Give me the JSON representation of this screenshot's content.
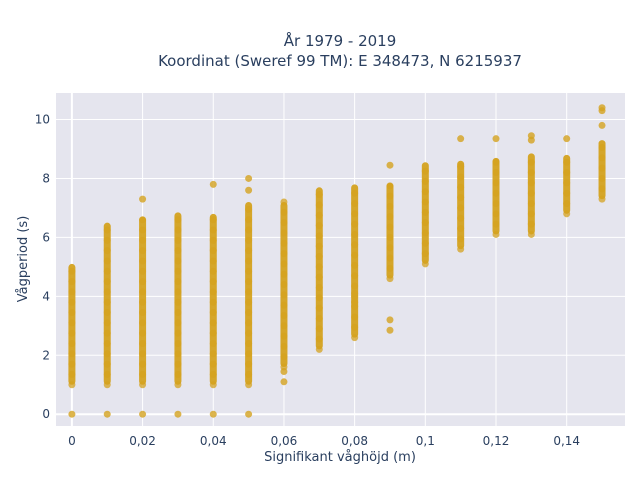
{
  "chart_data": {
    "type": "scatter",
    "title": "År 1979 - 2019",
    "subtitle": "Koordinat (Sweref 99 TM): E 348473, N 6215937",
    "xlabel": "Signifikant våghöjd (m)",
    "ylabel": "Vågperiod (s)",
    "xlim": [
      -0.0045,
      0.1565
    ],
    "ylim": [
      -0.4,
      10.9
    ],
    "x_ticks": [
      0,
      0.02,
      0.04,
      0.06,
      0.08,
      0.1,
      0.12,
      0.14
    ],
    "x_tick_labels": [
      "0",
      "0,02",
      "0,04",
      "0,06",
      "0,08",
      "0,1",
      "0,12",
      "0,14"
    ],
    "y_ticks": [
      0,
      2,
      4,
      6,
      8,
      10
    ],
    "y_tick_labels": [
      "0",
      "2",
      "4",
      "6",
      "8",
      "10"
    ],
    "grid": true,
    "marker_color": "#d4a21f",
    "plot_background": "#e5e5ee",
    "columns": [
      {
        "x": 0.0,
        "range": [
          1.0,
          5.1
        ],
        "outliers": [
          0
        ]
      },
      {
        "x": 0.01,
        "range": [
          1.0,
          6.5
        ],
        "outliers": [
          0
        ]
      },
      {
        "x": 0.02,
        "range": [
          1.0,
          6.7
        ],
        "outliers": [
          0,
          7.3
        ]
      },
      {
        "x": 0.03,
        "range": [
          1.0,
          6.85
        ],
        "outliers": [
          0
        ]
      },
      {
        "x": 0.04,
        "range": [
          1.0,
          6.8
        ],
        "outliers": [
          0,
          7.8
        ]
      },
      {
        "x": 0.05,
        "range": [
          1.0,
          7.2
        ],
        "outliers": [
          0,
          7.6,
          8.0
        ]
      },
      {
        "x": 0.06,
        "range": [
          1.6,
          7.2
        ],
        "outliers": [
          1.1,
          1.45
        ]
      },
      {
        "x": 0.07,
        "range": [
          2.2,
          7.7
        ],
        "outliers": []
      },
      {
        "x": 0.08,
        "range": [
          2.6,
          7.8
        ],
        "outliers": [
          3.8,
          4.1
        ]
      },
      {
        "x": 0.09,
        "range": [
          4.6,
          7.85
        ],
        "outliers": [
          2.85,
          3.2,
          8.45
        ]
      },
      {
        "x": 0.1,
        "range": [
          5.1,
          8.55
        ],
        "outliers": []
      },
      {
        "x": 0.11,
        "range": [
          5.6,
          8.6
        ],
        "outliers": [
          9.35
        ]
      },
      {
        "x": 0.12,
        "range": [
          6.1,
          8.7
        ],
        "outliers": [
          9.35
        ]
      },
      {
        "x": 0.13,
        "range": [
          6.1,
          8.85
        ],
        "outliers": [
          9.3,
          9.45
        ]
      },
      {
        "x": 0.14,
        "range": [
          6.8,
          8.8
        ],
        "outliers": [
          9.35
        ]
      },
      {
        "x": 0.15,
        "range": [
          7.3,
          9.3
        ],
        "outliers": [
          9.8,
          10.3,
          10.4
        ]
      }
    ]
  }
}
